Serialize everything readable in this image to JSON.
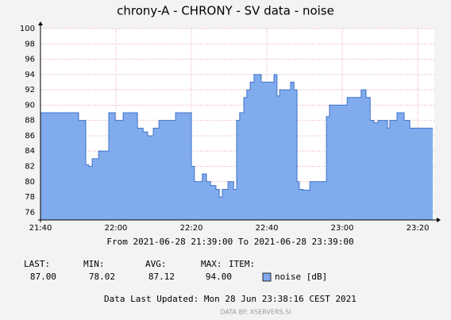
{
  "chart_data": {
    "type": "area",
    "title": "chrony-A - CHRONY - SV data - noise",
    "subtitle": "From 2021-06-28 21:39:00 To 2021-06-28 23:39:00",
    "series": [
      {
        "name": "noise [dB]",
        "color": "#80acee",
        "x": [
          0,
          10.1,
          12,
          12.8,
          13.7,
          15.4,
          18.1,
          19.8,
          21.9,
          25.7,
          27.2,
          28.4,
          29.9,
          31.4,
          35.8,
          40,
          40.8,
          42.9,
          44,
          45.1,
          46.5,
          47.4,
          48.2,
          49.7,
          51.2,
          52,
          52.8,
          53.9,
          54.7,
          55.6,
          56.6,
          58.5,
          61.9,
          62.7,
          63.4,
          66.3,
          67.2,
          68,
          68.6,
          69.5,
          71.4,
          75.8,
          76.6,
          81.3,
          85,
          86.3,
          87.4,
          88.4,
          89.5,
          92,
          92.6,
          94.5,
          96.4,
          97.9,
          104
        ],
        "values": [
          89,
          88,
          82.2,
          82,
          83,
          84,
          89,
          88,
          89,
          87,
          86.5,
          86,
          87,
          88,
          89,
          82,
          80,
          81,
          80,
          79.5,
          79,
          78,
          79,
          80,
          79,
          88,
          89,
          91,
          92,
          93,
          94,
          93,
          94,
          91.2,
          92,
          93,
          92,
          80,
          79,
          78.9,
          80,
          88.5,
          90,
          91,
          92,
          91,
          88,
          87.7,
          88,
          87,
          88,
          89,
          88,
          87,
          87
        ]
      }
    ],
    "xlim": [
      0,
      104.4
    ],
    "xticks": [
      {
        "value": 0,
        "label": "21:40"
      },
      {
        "value": 20,
        "label": "22:00"
      },
      {
        "value": 40,
        "label": "22:20"
      },
      {
        "value": 60,
        "label": "22:40"
      },
      {
        "value": 80,
        "label": "23:00"
      },
      {
        "value": 100,
        "label": "23:20"
      }
    ],
    "ylim": [
      75,
      100
    ],
    "yticks": [
      76,
      78,
      80,
      82,
      84,
      86,
      88,
      90,
      92,
      94,
      96,
      98,
      100
    ],
    "grid": true,
    "stats_headers": [
      "LAST:",
      "MIN:",
      "AVG:",
      "MAX:",
      "ITEM:"
    ],
    "stats": [
      {
        "value": 87,
        "label": "87.00"
      },
      {
        "value": 78.02,
        "label": "78.02"
      },
      {
        "value": 87.12,
        "label": "87.12"
      },
      {
        "value": 94,
        "label": "94.00"
      }
    ],
    "footer": "Data Last Updated: Mon 28 Jun 23:38:16 CEST 2021",
    "credit": "DATA BY: XSERVERS.SI"
  }
}
